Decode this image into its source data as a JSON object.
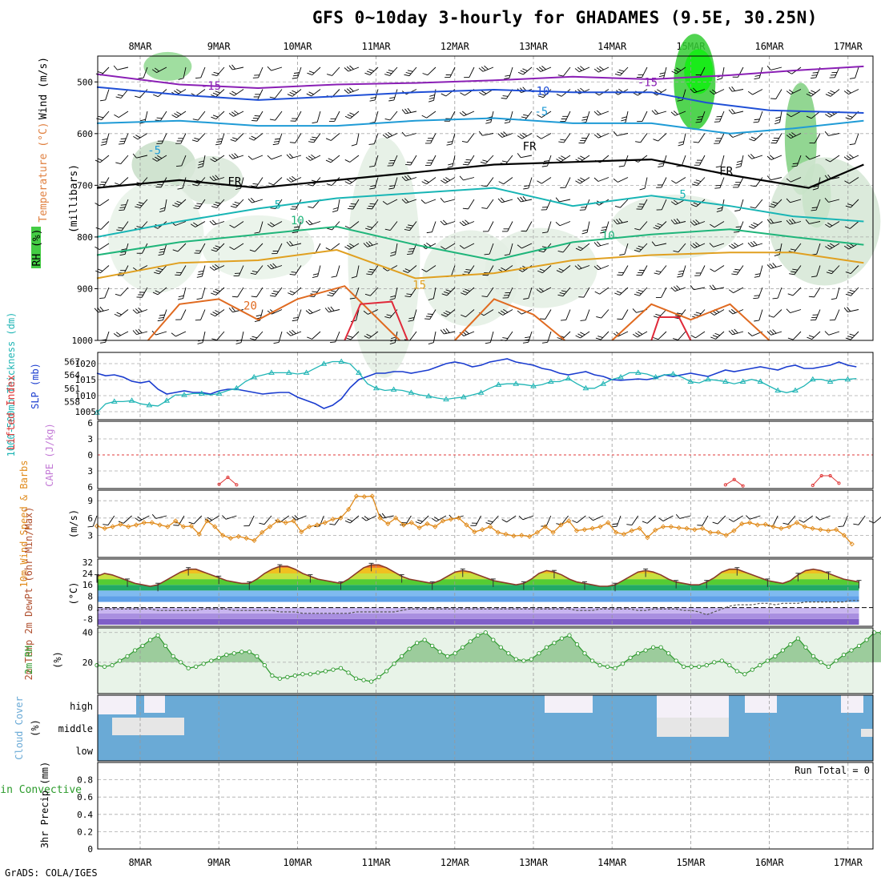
{
  "title": "GFS 0~10day 3-hourly for GHADAMES (9.5E, 30.25N)",
  "credit": "GrADS: COLA/IGES",
  "dates": [
    "8MAR",
    "9MAR",
    "10MAR",
    "11MAR",
    "12MAR",
    "13MAR",
    "14MAR",
    "15MAR",
    "16MAR",
    "17MAR"
  ],
  "colors": {
    "temp_cold": "#8a1fb5",
    "temp_cool": "#1f4fd6",
    "temp_mid": "#1f9bd6",
    "temp_teal": "#18b5b5",
    "temp_green": "#1fb57a",
    "temp_warm": "#e0a020",
    "temp_hot": "#e06a20",
    "temp_red": "#e02a3a",
    "slp": "#1a3ccf",
    "thickness": "#20b5b5",
    "wind": "#e08a1a",
    "rh": "#2e9a2e",
    "cloud": "#6aaad6",
    "lifted": "#e03a3a",
    "cape": "#c37ad6"
  },
  "chart_data": [
    {
      "type": "heatmap",
      "name": "upper-air cross-section",
      "ylabel": "(millibars)",
      "side_labels": [
        "Wind (m/s)",
        "Temperature (°C)",
        "RH (%)"
      ],
      "y_ticks": [
        500,
        600,
        700,
        800,
        900,
        1000
      ],
      "ylim": [
        450,
        1000
      ],
      "contour_labels": [
        {
          "text": "-15",
          "t": 0.9,
          "p": 515
        },
        {
          "text": "-15",
          "t": 6.45,
          "p": 508
        },
        {
          "text": "-10",
          "t": 5.08,
          "p": 525
        },
        {
          "text": "-5",
          "t": 5.1,
          "p": 565
        },
        {
          "text": "-5",
          "t": 0.18,
          "p": 640
        },
        {
          "text": "FR",
          "t": 1.2,
          "p": 700
        },
        {
          "text": "FR",
          "t": 4.95,
          "p": 632
        },
        {
          "text": "FR",
          "t": 7.45,
          "p": 680
        },
        {
          "text": "5",
          "t": 1.75,
          "p": 745
        },
        {
          "text": "5",
          "t": 6.9,
          "p": 725
        },
        {
          "text": "10",
          "t": 2.0,
          "p": 775
        },
        {
          "text": "10",
          "t": 5.95,
          "p": 805
        },
        {
          "text": "15",
          "t": 3.55,
          "p": 900
        },
        {
          "text": "20",
          "t": 1.4,
          "p": 940
        }
      ]
    },
    {
      "type": "line",
      "name": "SLP and 1000-500mb thickness",
      "ylabel_left": "1000-500mb Thickness (dm)",
      "ylabel_right": "SLP (mb)",
      "left_ticks": [
        558,
        561,
        564,
        567
      ],
      "right_ticks": [
        1005,
        1010,
        1015,
        1020
      ],
      "series": [
        {
          "name": "SLP (mb)",
          "values": [
            1017.0,
            1016.2,
            1016.5,
            1015.8,
            1014.5,
            1014.0,
            1014.5,
            1012.0,
            1010.5,
            1011.0,
            1011.5,
            1011.0,
            1011.0,
            1010.5,
            1011.5,
            1012.0,
            1012.0,
            1011.5,
            1011.0,
            1010.5,
            1010.8,
            1011.0,
            1011.0,
            1009.5,
            1008.5,
            1007.5,
            1006.0,
            1007.0,
            1009.0,
            1012.5,
            1015.0,
            1016.0,
            1017.0,
            1017.0,
            1017.5,
            1017.5,
            1017.0,
            1017.5,
            1018.0,
            1019.0,
            1020.0,
            1020.5,
            1020.0,
            1019.0,
            1019.5,
            1020.5,
            1021.0,
            1021.5,
            1020.5,
            1020.0,
            1019.5,
            1018.5,
            1018.0,
            1017.0,
            1016.5,
            1017.0,
            1017.5,
            1016.5,
            1016.0,
            1015.0,
            1014.8,
            1015.0,
            1015.2,
            1015.0,
            1015.5,
            1016.5,
            1016.0,
            1016.5,
            1017.0,
            1016.5,
            1016.0,
            1017.0,
            1018.0,
            1017.5,
            1018.0,
            1018.5,
            1019.0,
            1018.5,
            1018.0,
            1019.0,
            1019.5,
            1018.5,
            1018.5,
            1019.0,
            1019.5,
            1020.5,
            1019.5,
            1019.0
          ]
        },
        {
          "name": "Thickness (dm)",
          "values": [
            555.5,
            557.5,
            558.0,
            558.0,
            558.2,
            557.5,
            557.2,
            557.0,
            558.2,
            559.5,
            559.5,
            559.8,
            559.8,
            559.5,
            559.8,
            560.5,
            561.0,
            562.5,
            563.5,
            564.0,
            564.5,
            564.5,
            564.5,
            564.2,
            564.5,
            565.5,
            566.5,
            567.0,
            567.0,
            566.5,
            564.5,
            562.0,
            561.0,
            560.5,
            560.7,
            560.5,
            560.0,
            559.5,
            559.2,
            558.8,
            558.5,
            558.8,
            559.0,
            559.5,
            560.0,
            561.0,
            561.8,
            562.0,
            562.0,
            561.8,
            561.5,
            561.8,
            562.5,
            562.5,
            563.2,
            562.0,
            561.0,
            561.0,
            562.0,
            563.0,
            563.5,
            564.5,
            564.5,
            564.2,
            563.5,
            564.0,
            564.2,
            563.5,
            562.5,
            562.2,
            563.0,
            562.8,
            562.5,
            562.0,
            562.5,
            563.0,
            562.5,
            561.5,
            560.5,
            560.0,
            560.5,
            561.5,
            563.0,
            563.0,
            562.5,
            563.0,
            563.0,
            563.2
          ]
        }
      ]
    },
    {
      "type": "line",
      "name": "Lifted Index and CAPE",
      "ylabel_left": "Lifted Index",
      "ylabel_right": "CAPE (J/kg)",
      "y_ticks": [
        -6,
        -3,
        0,
        3,
        6
      ],
      "y_tick_labels": [
        "6",
        "3",
        "0",
        "3",
        "6"
      ],
      "ylim": [
        -6,
        6
      ],
      "series": [
        {
          "name": "Lifted Index",
          "values": [
            null,
            null,
            null,
            null,
            null,
            null,
            null,
            null,
            null,
            null,
            null,
            null,
            null,
            null,
            5.5,
            4.2,
            5.6,
            null,
            null,
            null,
            null,
            null,
            null,
            null,
            null,
            null,
            null,
            null,
            null,
            null,
            null,
            null,
            null,
            null,
            null,
            null,
            null,
            null,
            null,
            null,
            null,
            null,
            null,
            null,
            null,
            null,
            null,
            null,
            null,
            null,
            null,
            null,
            null,
            null,
            null,
            null,
            null,
            null,
            null,
            null,
            null,
            null,
            null,
            null,
            null,
            null,
            null,
            null,
            null,
            null,
            null,
            null,
            5.6,
            4.6,
            5.8,
            null,
            null,
            null,
            null,
            null,
            null,
            null,
            5.7,
            3.9,
            3.9,
            5.3,
            null,
            null
          ]
        }
      ]
    },
    {
      "type": "line",
      "name": "10m wind speed and barbs",
      "ylabel_left": "10m Wind Speed & Barbs",
      "ylabel_right": "(m/s)",
      "y_ticks": [
        3,
        6,
        9
      ],
      "ylim": [
        0,
        10
      ],
      "series": [
        {
          "name": "Speed (m/s)",
          "values": [
            4.6,
            4.2,
            4.5,
            4.9,
            4.5,
            4.8,
            5.2,
            5.2,
            4.8,
            4.5,
            5.5,
            4.5,
            4.6,
            3.2,
            5.5,
            4.5,
            3.0,
            2.5,
            2.8,
            2.5,
            2.1,
            3.5,
            4.5,
            5.5,
            5.2,
            5.5,
            3.6,
            4.5,
            4.8,
            5.2,
            5.8,
            6.0,
            7.5,
            9.8,
            9.7,
            9.8,
            6.0,
            5.0,
            6.0,
            4.8,
            5.2,
            4.3,
            5.0,
            4.5,
            5.5,
            5.8,
            6.0,
            4.8,
            3.6,
            4.0,
            4.5,
            3.5,
            3.2,
            2.9,
            3.0,
            2.8,
            3.5,
            4.5,
            3.5,
            4.8,
            5.5,
            3.8,
            4.0,
            4.2,
            4.5,
            5.2,
            3.5,
            3.2,
            3.8,
            4.2,
            2.6,
            3.9,
            4.5,
            4.5,
            4.3,
            4.2,
            4.0,
            4.2,
            3.5,
            3.5,
            3.0,
            3.8,
            5.0,
            5.2,
            4.8,
            4.9,
            4.5,
            4.2,
            4.5,
            5.2,
            4.5,
            4.2,
            4.0,
            3.8,
            4.0,
            3.0,
            1.5
          ]
        }
      ]
    },
    {
      "type": "area",
      "name": "2m temperature and dew point",
      "ylabel_left": "2m Temp 2m DewPt (6hr Min/Max)",
      "ylabel_right": "(°C)",
      "y_ticks": [
        -8,
        0,
        8,
        16,
        24,
        32
      ],
      "ylim": [
        -12,
        33
      ],
      "series": [
        {
          "name": "2m Temp (°C)",
          "values": [
            22,
            24,
            23,
            21,
            19,
            17,
            16,
            15,
            16,
            19,
            22,
            25,
            27,
            27,
            25,
            23,
            21,
            19,
            18,
            17,
            17,
            20,
            24,
            27,
            29,
            29,
            27,
            24,
            22,
            20,
            19,
            18,
            17,
            20,
            24,
            28,
            30,
            30,
            28,
            25,
            22,
            20,
            19,
            18,
            17,
            19,
            22,
            25,
            26,
            25,
            23,
            21,
            19,
            18,
            17,
            16,
            17,
            20,
            24,
            26,
            25,
            23,
            20,
            18,
            17,
            16,
            15,
            15,
            16,
            19,
            22,
            25,
            26,
            25,
            23,
            20,
            18,
            17,
            16,
            16,
            18,
            21,
            25,
            27,
            27,
            25,
            23,
            21,
            19,
            18,
            17,
            19,
            23,
            26,
            27,
            26,
            24,
            22,
            20,
            19,
            18
          ]
        },
        {
          "name": "2m DewPt (°C)",
          "values": [
            -2,
            -1,
            -1,
            -1,
            -1,
            -1,
            -1,
            -1,
            -2,
            -2,
            -2,
            -2,
            -2,
            -2,
            -1,
            -1,
            -1,
            -1,
            -2,
            -2,
            -2,
            -2,
            -2,
            -2,
            -3,
            -3,
            -3,
            -4,
            -4,
            -4,
            -4,
            -4,
            -4,
            -4,
            -3,
            -3,
            -3,
            -3,
            -3,
            -3,
            -2,
            -1,
            -1,
            -1,
            -1,
            -1,
            -1,
            -1,
            -1,
            -1,
            -1,
            -1,
            -1,
            -1,
            -1,
            -1,
            -1,
            -1,
            -1,
            -1,
            -1,
            -1,
            -1,
            -2,
            -2,
            -2,
            -1,
            -1,
            -1,
            -1,
            -1,
            -2,
            -2,
            -1,
            -1,
            -1,
            -1,
            -2,
            -2,
            -3,
            -5,
            -3,
            -1,
            1,
            2,
            2,
            2,
            3,
            3,
            2,
            3,
            3,
            3,
            4,
            4,
            4,
            4,
            4,
            4,
            5,
            5
          ]
        }
      ]
    },
    {
      "type": "area",
      "name": "2m relative humidity",
      "ylabel_left": "2m RH",
      "ylabel_right": "(%)",
      "y_ticks": [
        20,
        40
      ],
      "ylim": [
        0,
        42
      ],
      "series": [
        {
          "name": "RH (%)",
          "values": [
            18,
            17,
            18,
            21,
            24,
            28,
            31,
            35,
            38,
            31,
            24,
            20,
            16,
            17,
            19,
            21,
            23,
            25,
            26,
            27,
            27,
            24,
            18,
            11,
            9,
            10,
            11,
            12,
            12,
            13,
            14,
            15,
            16,
            13,
            9,
            8,
            7,
            10,
            14,
            19,
            24,
            29,
            33,
            35,
            31,
            27,
            24,
            26,
            30,
            34,
            38,
            40,
            35,
            30,
            26,
            22,
            21,
            22,
            26,
            30,
            33,
            36,
            38,
            32,
            26,
            21,
            18,
            17,
            16,
            19,
            23,
            26,
            28,
            30,
            30,
            26,
            21,
            17,
            17,
            17,
            18,
            20,
            21,
            18,
            14,
            12,
            15,
            18,
            21,
            24,
            28,
            32,
            36,
            30,
            24,
            20,
            17,
            21,
            25,
            28,
            31,
            35,
            40,
            40
          ]
        }
      ]
    },
    {
      "type": "heatmap",
      "name": "cloud cover",
      "ylabel_left": "Cloud Cover",
      "ylabel_right": "(%)",
      "levels": [
        "high",
        "middle",
        "low"
      ]
    },
    {
      "type": "line",
      "name": "3hr precipitation",
      "ylabel_left": "Total / Rain Convective",
      "ylabel_right": "3hr Precip (mm)",
      "y_ticks": [
        0,
        0.2,
        0.4,
        0.6,
        0.8
      ],
      "y_tick_labels": [
        "0",
        "0.2",
        "0.4",
        "0.6",
        "0.8"
      ],
      "ylim": [
        0,
        1
      ],
      "run_total_label": "Run Total = 0",
      "series": [
        {
          "name": "Total",
          "values": []
        }
      ]
    }
  ]
}
